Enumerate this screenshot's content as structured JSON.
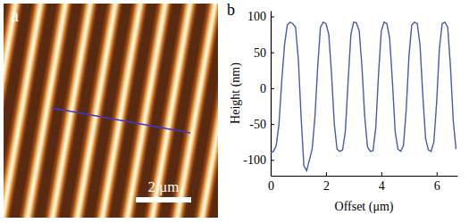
{
  "chart_data": [
    {
      "type": "image",
      "panel": "a",
      "scale_bar": "2 μm"
    },
    {
      "type": "line",
      "panel": "b",
      "x_label": "Offset (μm)",
      "y_label": "Height (nm)",
      "xlim": [
        0,
        6.75
      ],
      "ylim": [
        -122,
        108
      ],
      "xticks": [
        0,
        2,
        4,
        6
      ],
      "yticks": [
        -100,
        -50,
        0,
        50,
        100
      ],
      "x": [
        0.0,
        0.1,
        0.2,
        0.3,
        0.4,
        0.5,
        0.6,
        0.7,
        0.8,
        0.9,
        1.0,
        1.1,
        1.2,
        1.3,
        1.4,
        1.5,
        1.6,
        1.7,
        1.8,
        1.9,
        2.0,
        2.1,
        2.2,
        2.3,
        2.4,
        2.5,
        2.6,
        2.7,
        2.8,
        2.9,
        3.0,
        3.1,
        3.2,
        3.3,
        3.4,
        3.5,
        3.6,
        3.7,
        3.8,
        3.9,
        4.0,
        4.1,
        4.2,
        4.3,
        4.4,
        4.5,
        4.6,
        4.7,
        4.8,
        4.9,
        5.0,
        5.1,
        5.2,
        5.3,
        5.4,
        5.5,
        5.6,
        5.7,
        5.8,
        5.9,
        6.0,
        6.1,
        6.2,
        6.3,
        6.4,
        6.5,
        6.6,
        6.7
      ],
      "series": [
        {
          "color": "#4a5aa8",
          "values": [
            -90,
            -88,
            -80,
            -50,
            10,
            60,
            88,
            92,
            90,
            85,
            40,
            -40,
            -108,
            -115,
            -100,
            -85,
            -40,
            30,
            85,
            92,
            90,
            75,
            20,
            -50,
            -85,
            -88,
            -86,
            -60,
            10,
            75,
            92,
            91,
            80,
            30,
            -40,
            -82,
            -88,
            -87,
            -55,
            20,
            80,
            92,
            90,
            70,
            10,
            -60,
            -85,
            -88,
            -80,
            -30,
            45,
            88,
            92,
            90,
            60,
            -10,
            -70,
            -86,
            -88,
            -75,
            -20,
            55,
            90,
            92,
            85,
            30,
            -45,
            -85
          ]
        }
      ]
    }
  ]
}
